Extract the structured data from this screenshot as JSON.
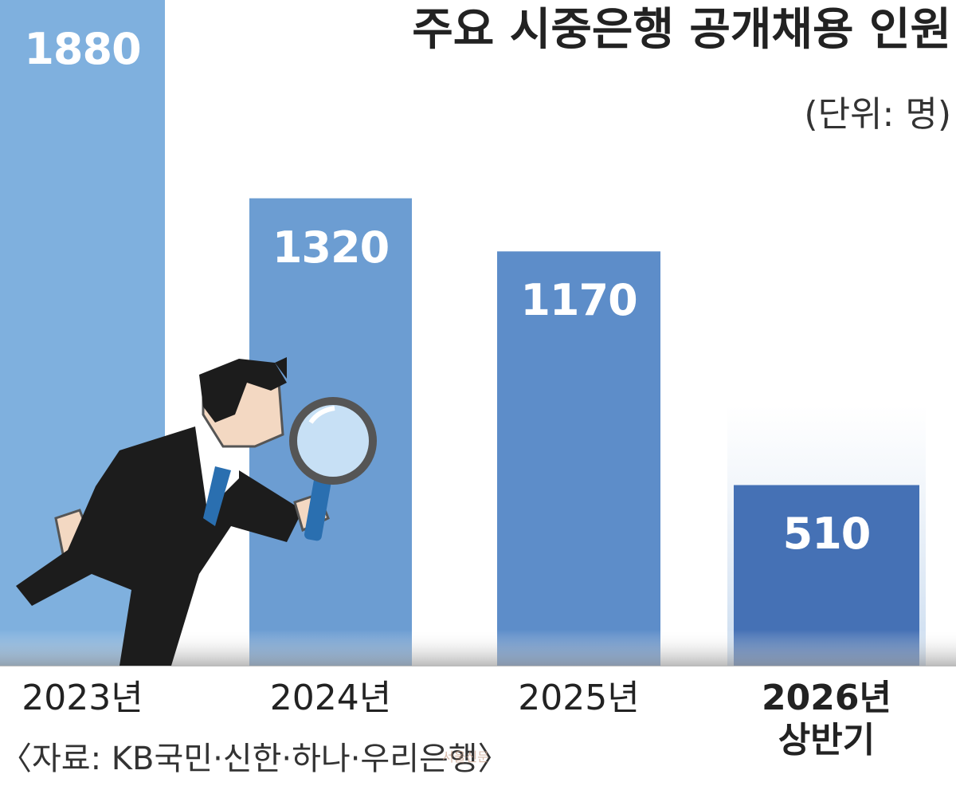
{
  "chart_data": {
    "type": "bar",
    "title": "주요 시중은행 공개채용 인원",
    "subtitle": "(단위: 명)",
    "source": "〈자료: KB국민·신한·하나·우리은행〉",
    "watermark": "서울신문",
    "categories": [
      "2023년",
      "2024년",
      "2025년",
      "2026년\n상반기"
    ],
    "values": [
      1880,
      1320,
      1170,
      510
    ],
    "colors": [
      "#7fb0de",
      "#6c9dd2",
      "#5d8dc9",
      "#4571b5"
    ],
    "ylim": [
      0,
      1880
    ]
  }
}
